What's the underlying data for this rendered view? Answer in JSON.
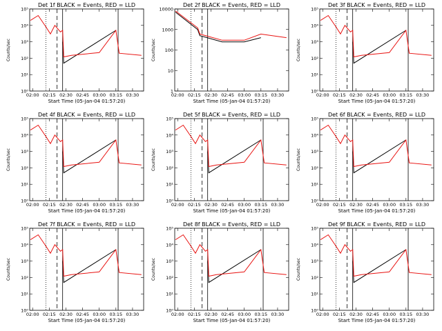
{
  "figure": {
    "x_axis_title": "Start Time (05-Jan-04 01:57:20)",
    "y_axis_title": "Counts/sec",
    "x_tick_labels": [
      "02:00",
      "02:15",
      "02:30",
      "02:45",
      "03:00",
      "03:15",
      "03:30"
    ],
    "colors": {
      "events": "#000000",
      "lld": "#e8110f"
    }
  },
  "chart_data": [
    {
      "type": "line",
      "title": "Det 1f BLACK = Events, RED = LLD",
      "ylabel": "Counts/sec",
      "xlabel": "Start Time (05-Jan-04 01:57:20)",
      "yscale": "log",
      "ylim": [
        1,
        100000
      ],
      "y_tick_labels": [
        "10⁰",
        "10¹",
        "10²",
        "10³",
        "10⁴",
        "10⁵"
      ],
      "xlim": [
        "01:57:20",
        "03:40"
      ],
      "marker_lines": {
        "dotted": "02:12",
        "dashed": "02:22",
        "solid": "02:27",
        "solid_end": "03:17"
      },
      "series": [
        {
          "name": "Events",
          "points": [
            [
              "02:27",
              1000
            ],
            [
              "02:28",
              50
            ],
            [
              "03:15",
              5000
            ]
          ]
        },
        {
          "name": "LLD",
          "points": [
            [
              "01:58",
              20000
            ],
            [
              "02:05",
              40000
            ],
            [
              "02:12",
              8000
            ],
            [
              "02:16",
              3000
            ],
            [
              "02:20",
              10000
            ],
            [
              "02:25",
              4000
            ],
            [
              "02:27",
              5000
            ],
            [
              "02:28",
              120
            ],
            [
              "02:35",
              150
            ],
            [
              "03:00",
              220
            ],
            [
              "03:15",
              5000
            ],
            [
              "03:18",
              200
            ],
            [
              "03:38",
              150
            ]
          ]
        }
      ]
    },
    {
      "type": "line",
      "title": "Det 2f BLACK = Events, RED = LLD",
      "ylabel": "Counts/sec",
      "xlabel": "Start Time (05-Jan-04 01:57:20)",
      "yscale": "log",
      "ylim": [
        1,
        10000
      ],
      "y_tick_labels": [
        "1",
        "10",
        "100",
        "1000",
        "10000"
      ],
      "xlim": [
        "01:57:20",
        "03:40"
      ],
      "marker_lines": {
        "dotted": "02:12",
        "dashed": "02:22",
        "solid": "02:27"
      },
      "series": [
        {
          "name": "Events",
          "points": [
            [
              "01:58",
              7000
            ],
            [
              "02:18",
              1000
            ],
            [
              "02:20",
              500
            ],
            [
              "02:40",
              250
            ],
            [
              "03:00",
              250
            ],
            [
              "03:15",
              400
            ]
          ]
        },
        {
          "name": "LLD",
          "points": [
            [
              "01:58",
              8000
            ],
            [
              "02:18",
              1200
            ],
            [
              "02:20",
              600
            ],
            [
              "02:40",
              300
            ],
            [
              "03:00",
              300
            ],
            [
              "03:15",
              600
            ],
            [
              "03:38",
              400
            ]
          ]
        }
      ]
    },
    {
      "type": "line",
      "title": "Det 3f BLACK = Events, RED = LLD",
      "ylabel": "Counts/sec",
      "xlabel": "Start Time (05-Jan-04 01:57:20)",
      "yscale": "log",
      "ylim": [
        1,
        100000
      ],
      "y_tick_labels": [
        "10⁰",
        "10¹",
        "10²",
        "10³",
        "10⁴",
        "10⁵"
      ],
      "xlim": [
        "01:57:20",
        "03:40"
      ],
      "marker_lines": {
        "dotted": "02:12",
        "dashed": "02:22",
        "solid": "02:27",
        "solid_end": "03:17"
      },
      "series": [
        {
          "name": "Events",
          "points": [
            [
              "02:27",
              1000
            ],
            [
              "02:28",
              50
            ],
            [
              "03:15",
              5000
            ]
          ]
        },
        {
          "name": "LLD",
          "points": [
            [
              "01:58",
              20000
            ],
            [
              "02:05",
              40000
            ],
            [
              "02:12",
              8000
            ],
            [
              "02:16",
              3000
            ],
            [
              "02:20",
              10000
            ],
            [
              "02:25",
              4000
            ],
            [
              "02:27",
              5000
            ],
            [
              "02:28",
              120
            ],
            [
              "02:35",
              150
            ],
            [
              "03:00",
              220
            ],
            [
              "03:15",
              5000
            ],
            [
              "03:18",
              200
            ],
            [
              "03:38",
              150
            ]
          ]
        }
      ]
    },
    {
      "type": "line",
      "title": "Det 4f BLACK = Events, RED = LLD",
      "ylabel": "Counts/sec",
      "xlabel": "Start Time (05-Jan-04 01:57:20)",
      "yscale": "log",
      "ylim": [
        1,
        100000
      ],
      "y_tick_labels": [
        "10⁰",
        "10¹",
        "10²",
        "10³",
        "10⁴",
        "10⁵"
      ],
      "xlim": [
        "01:57:20",
        "03:40"
      ],
      "marker_lines": {
        "dotted": "02:12",
        "dashed": "02:22",
        "solid": "02:27",
        "solid_end": "03:17"
      },
      "series": [
        {
          "name": "Events",
          "points": [
            [
              "02:27",
              1000
            ],
            [
              "02:28",
              50
            ],
            [
              "03:15",
              5000
            ]
          ]
        },
        {
          "name": "LLD",
          "points": [
            [
              "01:58",
              20000
            ],
            [
              "02:05",
              40000
            ],
            [
              "02:12",
              8000
            ],
            [
              "02:16",
              3000
            ],
            [
              "02:20",
              10000
            ],
            [
              "02:25",
              4000
            ],
            [
              "02:27",
              5000
            ],
            [
              "02:28",
              120
            ],
            [
              "02:35",
              150
            ],
            [
              "03:00",
              220
            ],
            [
              "03:15",
              5000
            ],
            [
              "03:18",
              200
            ],
            [
              "03:38",
              150
            ]
          ]
        }
      ]
    },
    {
      "type": "line",
      "title": "Det 5f BLACK = Events, RED = LLD",
      "ylabel": "Counts/sec",
      "xlabel": "Start Time (05-Jan-04 01:57:20)",
      "yscale": "log",
      "ylim": [
        1,
        100000
      ],
      "y_tick_labels": [
        "10⁰",
        "10¹",
        "10²",
        "10³",
        "10⁴",
        "10⁵"
      ],
      "xlim": [
        "01:57:20",
        "03:40"
      ],
      "marker_lines": {
        "dotted": "02:12",
        "dashed": "02:22",
        "solid": "02:27",
        "solid_end": "03:17"
      },
      "series": [
        {
          "name": "Events",
          "points": [
            [
              "02:27",
              1000
            ],
            [
              "02:28",
              50
            ],
            [
              "03:15",
              5000
            ]
          ]
        },
        {
          "name": "LLD",
          "points": [
            [
              "01:58",
              20000
            ],
            [
              "02:05",
              40000
            ],
            [
              "02:12",
              8000
            ],
            [
              "02:16",
              3000
            ],
            [
              "02:20",
              10000
            ],
            [
              "02:25",
              4000
            ],
            [
              "02:27",
              5000
            ],
            [
              "02:28",
              120
            ],
            [
              "02:35",
              150
            ],
            [
              "03:00",
              220
            ],
            [
              "03:15",
              5000
            ],
            [
              "03:18",
              200
            ],
            [
              "03:38",
              150
            ]
          ]
        }
      ]
    },
    {
      "type": "line",
      "title": "Det 6f BLACK = Events, RED = LLD",
      "ylabel": "Counts/sec",
      "xlabel": "Start Time (05-Jan-04 01:57:20)",
      "yscale": "log",
      "ylim": [
        1,
        100000
      ],
      "y_tick_labels": [
        "10⁰",
        "10¹",
        "10²",
        "10³",
        "10⁴",
        "10⁵"
      ],
      "xlim": [
        "01:57:20",
        "03:40"
      ],
      "marker_lines": {
        "dotted": "02:12",
        "dashed": "02:22",
        "solid": "02:27",
        "solid_end": "03:17"
      },
      "series": [
        {
          "name": "Events",
          "points": [
            [
              "02:27",
              1000
            ],
            [
              "02:28",
              50
            ],
            [
              "03:15",
              5000
            ]
          ]
        },
        {
          "name": "LLD",
          "points": [
            [
              "01:58",
              20000
            ],
            [
              "02:05",
              40000
            ],
            [
              "02:12",
              8000
            ],
            [
              "02:16",
              3000
            ],
            [
              "02:20",
              10000
            ],
            [
              "02:25",
              4000
            ],
            [
              "02:27",
              5000
            ],
            [
              "02:28",
              120
            ],
            [
              "02:35",
              150
            ],
            [
              "03:00",
              220
            ],
            [
              "03:15",
              5000
            ],
            [
              "03:18",
              200
            ],
            [
              "03:38",
              150
            ]
          ]
        }
      ]
    },
    {
      "type": "line",
      "title": "Det 7f BLACK = Events, RED = LLD",
      "ylabel": "Counts/sec",
      "xlabel": "Start Time (05-Jan-04 01:57:20)",
      "yscale": "log",
      "ylim": [
        1,
        100000
      ],
      "y_tick_labels": [
        "10⁰",
        "10¹",
        "10²",
        "10³",
        "10⁴",
        "10⁵"
      ],
      "xlim": [
        "01:57:20",
        "03:40"
      ],
      "marker_lines": {
        "dotted": "02:12",
        "dashed": "02:22",
        "solid": "02:27",
        "solid_end": "03:17"
      },
      "series": [
        {
          "name": "Events",
          "points": [
            [
              "02:27",
              1000
            ],
            [
              "02:28",
              50
            ],
            [
              "03:15",
              5000
            ]
          ]
        },
        {
          "name": "LLD",
          "points": [
            [
              "01:58",
              20000
            ],
            [
              "02:05",
              40000
            ],
            [
              "02:12",
              8000
            ],
            [
              "02:16",
              3000
            ],
            [
              "02:20",
              10000
            ],
            [
              "02:25",
              4000
            ],
            [
              "02:27",
              5000
            ],
            [
              "02:28",
              120
            ],
            [
              "02:35",
              150
            ],
            [
              "03:00",
              220
            ],
            [
              "03:15",
              5000
            ],
            [
              "03:18",
              200
            ],
            [
              "03:38",
              150
            ]
          ]
        }
      ]
    },
    {
      "type": "line",
      "title": "Det 8f BLACK = Events, RED = LLD",
      "ylabel": "Counts/sec",
      "xlabel": "Start Time (05-Jan-04 01:57:20)",
      "yscale": "log",
      "ylim": [
        1,
        100000
      ],
      "y_tick_labels": [
        "10⁰",
        "10¹",
        "10²",
        "10³",
        "10⁴",
        "10⁵"
      ],
      "xlim": [
        "01:57:20",
        "03:40"
      ],
      "marker_lines": {
        "dotted": "02:12",
        "dashed": "02:22",
        "solid": "02:27",
        "solid_end": "03:17"
      },
      "series": [
        {
          "name": "Events",
          "points": [
            [
              "02:27",
              1000
            ],
            [
              "02:28",
              50
            ],
            [
              "03:15",
              5000
            ]
          ]
        },
        {
          "name": "LLD",
          "points": [
            [
              "01:58",
              20000
            ],
            [
              "02:05",
              40000
            ],
            [
              "02:12",
              8000
            ],
            [
              "02:16",
              3000
            ],
            [
              "02:20",
              10000
            ],
            [
              "02:25",
              4000
            ],
            [
              "02:27",
              5000
            ],
            [
              "02:28",
              120
            ],
            [
              "02:35",
              150
            ],
            [
              "03:00",
              220
            ],
            [
              "03:15",
              5000
            ],
            [
              "03:18",
              200
            ],
            [
              "03:38",
              150
            ]
          ]
        }
      ]
    },
    {
      "type": "line",
      "title": "Det 9f BLACK = Events, RED = LLD",
      "ylabel": "Counts/sec",
      "xlabel": "Start Time (05-Jan-04 01:57:20)",
      "yscale": "log",
      "ylim": [
        1,
        100000
      ],
      "y_tick_labels": [
        "10⁰",
        "10¹",
        "10²",
        "10³",
        "10⁴",
        "10⁵"
      ],
      "xlim": [
        "01:57:20",
        "03:40"
      ],
      "marker_lines": {
        "dotted": "02:12",
        "dashed": "02:22",
        "solid": "02:27",
        "solid_end": "03:17"
      },
      "series": [
        {
          "name": "Events",
          "points": [
            [
              "02:27",
              1000
            ],
            [
              "02:28",
              50
            ],
            [
              "03:15",
              5000
            ]
          ]
        },
        {
          "name": "LLD",
          "points": [
            [
              "01:58",
              20000
            ],
            [
              "02:05",
              40000
            ],
            [
              "02:12",
              8000
            ],
            [
              "02:16",
              3000
            ],
            [
              "02:20",
              10000
            ],
            [
              "02:25",
              4000
            ],
            [
              "02:27",
              5000
            ],
            [
              "02:28",
              120
            ],
            [
              "02:35",
              150
            ],
            [
              "03:00",
              220
            ],
            [
              "03:15",
              5000
            ],
            [
              "03:18",
              200
            ],
            [
              "03:38",
              150
            ]
          ]
        }
      ]
    }
  ]
}
